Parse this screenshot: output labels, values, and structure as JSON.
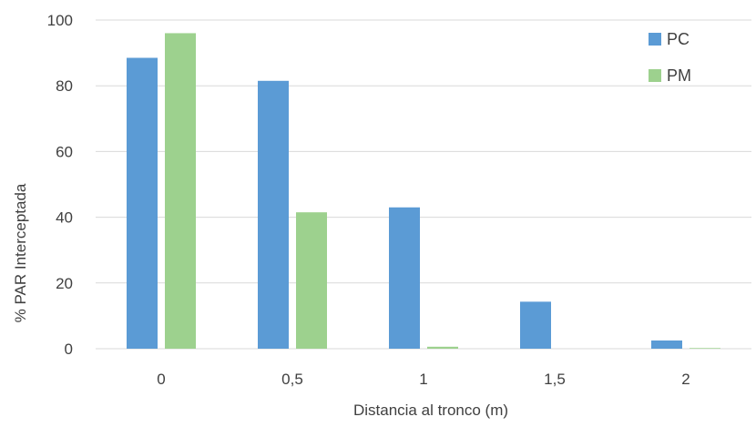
{
  "chart_data": {
    "type": "bar",
    "title": "",
    "xlabel": "Distancia al tronco (m)",
    "ylabel": "% PAR Interceptada",
    "categories": [
      "0",
      "0,5",
      "1",
      "1,5",
      "2"
    ],
    "series": [
      {
        "name": "PC",
        "color": "#5B9BD5",
        "values": [
          88.5,
          81.5,
          43,
          14.3,
          2.5
        ]
      },
      {
        "name": "PM",
        "color": "#9DD18E",
        "values": [
          96,
          41.5,
          0.6,
          0,
          0.2
        ]
      }
    ],
    "ylim": [
      0,
      100
    ],
    "yticks": [
      "0",
      "20",
      "40",
      "60",
      "80",
      "100"
    ],
    "grid": true,
    "legend_position": "top-right"
  }
}
